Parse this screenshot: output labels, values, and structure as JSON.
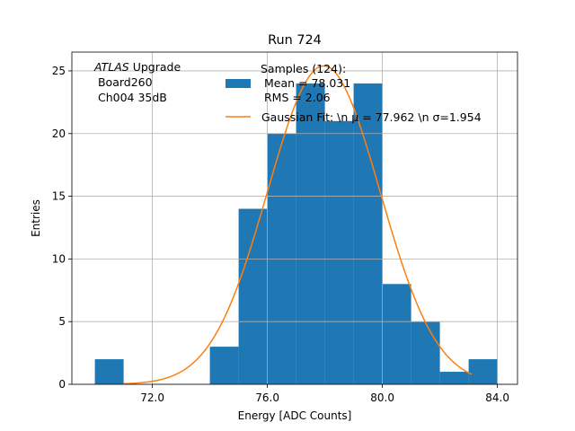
{
  "chart_data": {
    "type": "histogram",
    "title": "Run 724",
    "xlabel": "Energy [ADC Counts]",
    "ylabel": "Entries",
    "xlim": [
      69.2,
      84.7
    ],
    "ylim": [
      0,
      26.5
    ],
    "grid": true,
    "xticks": [
      72.0,
      76.0,
      80.0,
      84.0
    ],
    "xtick_labels": [
      "72.0",
      "76.0",
      "80.0",
      "84.0"
    ],
    "yticks": [
      0,
      5,
      10,
      15,
      20,
      25
    ],
    "ytick_labels": [
      "0",
      "5",
      "10",
      "15",
      "20",
      "25"
    ],
    "bins": [
      {
        "x0": 70,
        "x1": 71,
        "value": 2
      },
      {
        "x0": 71,
        "x1": 72,
        "value": 0
      },
      {
        "x0": 72,
        "x1": 73,
        "value": 0
      },
      {
        "x0": 73,
        "x1": 74,
        "value": 0
      },
      {
        "x0": 74,
        "x1": 75,
        "value": 3
      },
      {
        "x0": 75,
        "x1": 76,
        "value": 14
      },
      {
        "x0": 76,
        "x1": 77,
        "value": 20
      },
      {
        "x0": 77,
        "x1": 78,
        "value": 24
      },
      {
        "x0": 78,
        "x1": 79,
        "value": 21
      },
      {
        "x0": 79,
        "x1": 80,
        "value": 24
      },
      {
        "x0": 80,
        "x1": 81,
        "value": 8
      },
      {
        "x0": 81,
        "x1": 82,
        "value": 5
      },
      {
        "x0": 82,
        "x1": 83,
        "value": 1
      },
      {
        "x0": 83,
        "x1": 84,
        "value": 2
      }
    ],
    "gaussian_fit": {
      "mu": 77.962,
      "sigma": 1.954,
      "amplitude": 25.4,
      "x_start": 71.0,
      "x_end": 83.1
    },
    "series": [
      {
        "name": "Samples (124):\n Mean = 78.031\n RMS = 2.06",
        "color": "#1f77b4",
        "kind": "bar"
      },
      {
        "name": "Gaussian Fit: \\n $\\mu$ = 77.962 \\n $\\sigma$=1.954",
        "color": "#ff7f0e",
        "kind": "line"
      }
    ],
    "legend": {
      "position": "upper-right",
      "samples_line1": "Samples (124):",
      "samples_line2": " Mean = 78.031",
      "samples_line3": " RMS = 2.06",
      "fit_label": "Gaussian Fit: \\n μ = 77.962 \\n σ=1.954"
    },
    "annotation": {
      "atlas": "ATLAS",
      "upgrade": " Upgrade",
      "line2": " Board260",
      "line3": " Ch004 35dB"
    },
    "colors": {
      "bar": "#1f77b4",
      "fit": "#ff7f0e",
      "grid": "#b0b0b0"
    }
  }
}
